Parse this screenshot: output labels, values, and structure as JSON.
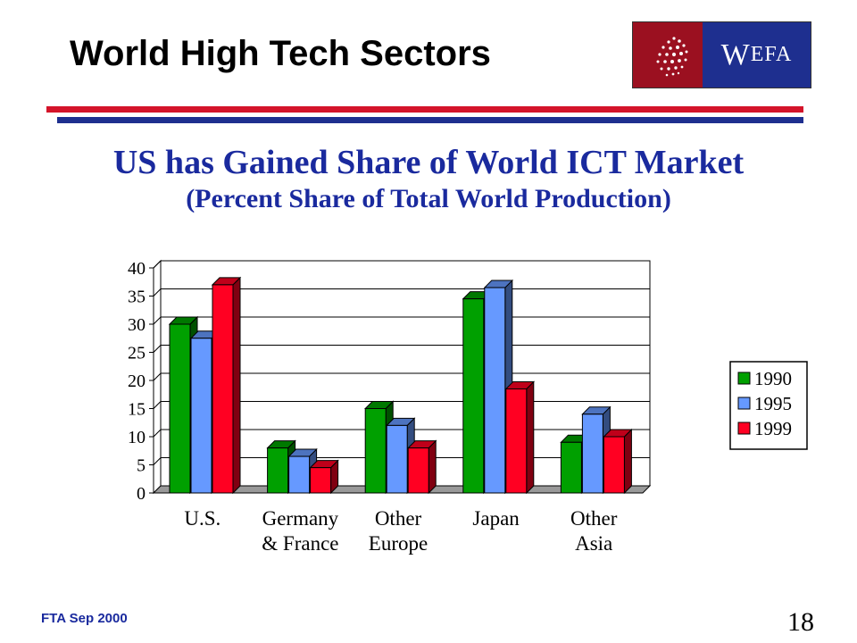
{
  "slide": {
    "title": "World High Tech Sectors",
    "subtitle": "US has Gained Share of World ICT Market",
    "subtitle2": "(Percent Share of Total World Production)",
    "footer": "FTA Sep 2000",
    "page_number": "18",
    "logo_text_big": "W",
    "logo_text_small": "EFA"
  },
  "colors": {
    "title_blue": "#1a2a9e",
    "rule_red": "#d4142a",
    "rule_blue": "#1e2f8f",
    "logo_red": "#9b1020",
    "logo_blue": "#1e2f8f"
  },
  "chart_data": {
    "type": "bar",
    "style": "3d-clustered",
    "categories": [
      [
        "U.S."
      ],
      [
        "Germany",
        "& France"
      ],
      [
        "Other",
        "Europe"
      ],
      [
        "Japan"
      ],
      [
        "Other",
        "Asia"
      ]
    ],
    "series": [
      {
        "name": "1990",
        "color": "#00a000",
        "values": [
          30,
          8,
          15,
          34.5,
          9
        ]
      },
      {
        "name": "1995",
        "color": "#6699ff",
        "values": [
          27.5,
          6.5,
          12,
          36.5,
          14
        ]
      },
      {
        "name": "1999",
        "color": "#ff0022",
        "values": [
          37,
          4.5,
          8,
          18.5,
          10
        ]
      }
    ],
    "ylim": [
      0,
      40
    ],
    "yticks": [
      0,
      5,
      10,
      15,
      20,
      25,
      30,
      35,
      40
    ],
    "grid": true,
    "legend": "right",
    "xlabel": "",
    "ylabel": ""
  }
}
